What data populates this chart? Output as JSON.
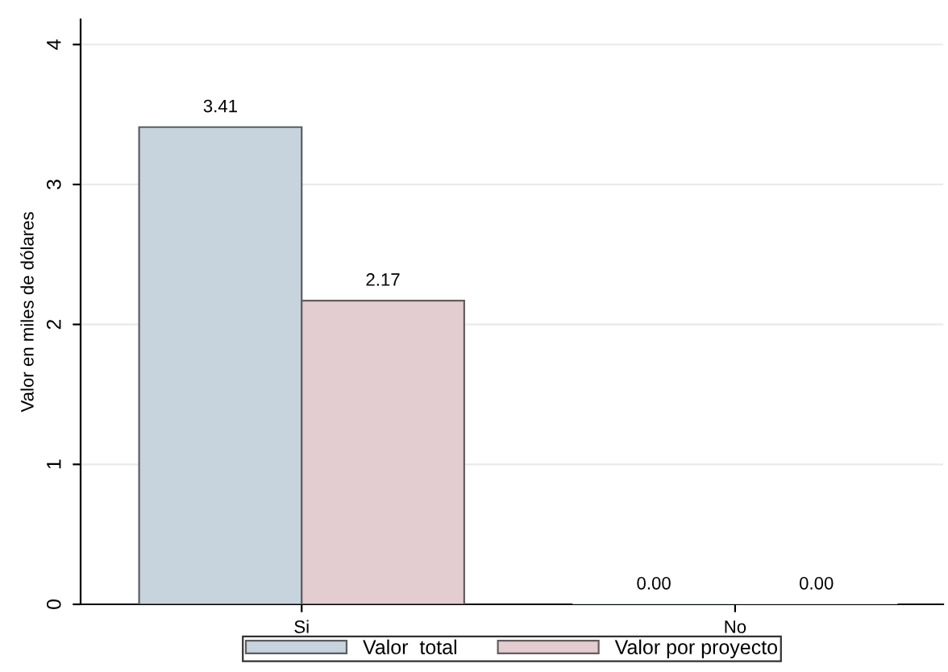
{
  "chart_data": {
    "type": "bar",
    "ylabel": "Valor en miles de dólares",
    "categories": [
      "Si",
      "No"
    ],
    "series": [
      {
        "name": "Valor  total",
        "color": "#c7d3dd",
        "values": [
          3.41,
          0
        ],
        "value_labels": [
          "3.41",
          "0.00"
        ]
      },
      {
        "name": "Valor por proyecto",
        "color": "#e3cdd0",
        "values": [
          2.17,
          0
        ],
        "value_labels": [
          "2.17",
          "0.00"
        ]
      }
    ],
    "ylim": [
      0,
      4.18
    ],
    "yticks": [
      0,
      1,
      2,
      3,
      4
    ],
    "grid": "y",
    "legend": "bottom"
  }
}
